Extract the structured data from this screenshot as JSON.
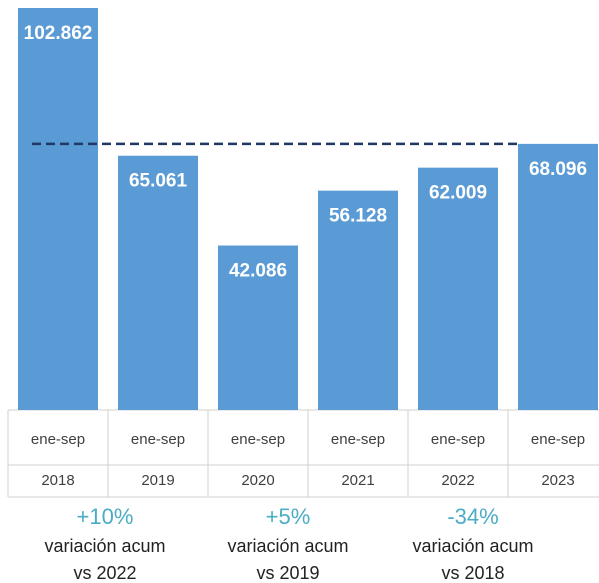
{
  "chart_data": {
    "type": "bar",
    "categories": [
      [
        "ene-sep",
        "2018"
      ],
      [
        "ene-sep",
        "2019"
      ],
      [
        "ene-sep",
        "2020"
      ],
      [
        "ene-sep",
        "2021"
      ],
      [
        "ene-sep",
        "2022"
      ],
      [
        "ene-sep",
        "2023"
      ]
    ],
    "values": [
      102862,
      65061,
      42086,
      56128,
      62009,
      68096
    ],
    "value_labels": [
      "102.862",
      "65.061",
      "42.086",
      "56.128",
      "62.009",
      "68.096"
    ],
    "color": "#5b9bd5",
    "ylim": [
      0,
      102862
    ],
    "reference_line": {
      "value": 68096,
      "color": "#1f3864"
    },
    "annotations": [
      {
        "value": "+10%",
        "text": [
          "variación acum",
          "vs 2022"
        ]
      },
      {
        "value": "+5%",
        "text": [
          "variación acum",
          "vs 2019"
        ]
      },
      {
        "value": "-34%",
        "text": [
          "variación acum",
          "vs 2018"
        ]
      }
    ],
    "annotation_color": "#4bacc6"
  }
}
